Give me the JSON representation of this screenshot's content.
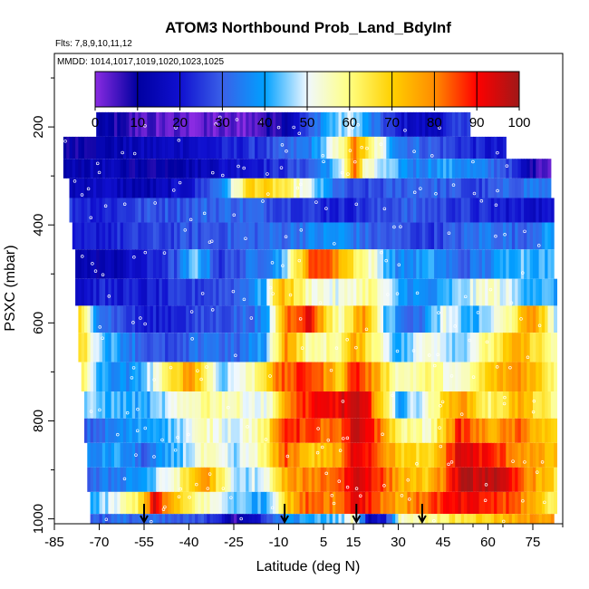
{
  "chart_data": {
    "type": "heatmap",
    "title": "ATOM3 Northbound Prob_Land_BdyInf",
    "subtitle": "Flts: 7,8,9,10,11,12",
    "annotation": "MMDD: 1014,1017,1019,1020,1023,1025",
    "xlabel": "Latitude (deg N)",
    "ylabel": "PSXC (mbar)",
    "xlim": [
      -85,
      85
    ],
    "ylim": [
      1010,
      50
    ],
    "x_ticks": [
      -85,
      -70,
      -55,
      -40,
      -25,
      -10,
      5,
      15,
      30,
      45,
      60,
      75
    ],
    "y_ticks": [
      200,
      400,
      600,
      800,
      1000
    ],
    "colorbar": {
      "range": [
        0,
        100
      ],
      "ticks": [
        0,
        10,
        20,
        30,
        40,
        50,
        60,
        70,
        80,
        90,
        100
      ],
      "colors": [
        "#8a2be2",
        "#0000a0",
        "#1010d0",
        "#3a60e8",
        "#00a0ff",
        "#f0f8ff",
        "#ffff80",
        "#ffd000",
        "#ff8c00",
        "#ff0000",
        "#a01818"
      ]
    },
    "bands": [
      {
        "p_top": 170,
        "p_bot": 220,
        "lat_min": -71,
        "lat_max": 54,
        "lats": [
          -71,
          -60,
          -40,
          -20,
          -10,
          0,
          5,
          10,
          15,
          20,
          30,
          40,
          50,
          54
        ],
        "vals": [
          12,
          5,
          2,
          3,
          10,
          28,
          40,
          45,
          48,
          35,
          20,
          15,
          25,
          30
        ]
      },
      {
        "p_top": 220,
        "p_bot": 265,
        "lat_min": -82,
        "lat_max": 66,
        "lats": [
          -82,
          -70,
          -55,
          -40,
          -25,
          -10,
          0,
          10,
          15,
          20,
          30,
          40,
          50,
          60,
          66
        ],
        "vals": [
          10,
          12,
          15,
          18,
          22,
          28,
          35,
          55,
          80,
          60,
          35,
          30,
          25,
          20,
          18
        ]
      },
      {
        "p_top": 265,
        "p_bot": 305,
        "lat_min": -82,
        "lat_max": 81,
        "lats": [
          -82,
          -70,
          -55,
          -40,
          -25,
          -10,
          0,
          10,
          15,
          18,
          25,
          35,
          45,
          55,
          65,
          75,
          81
        ],
        "vals": [
          12,
          15,
          10,
          14,
          20,
          24,
          30,
          45,
          85,
          55,
          45,
          35,
          40,
          35,
          30,
          8,
          5
        ]
      },
      {
        "p_top": 305,
        "p_bot": 345,
        "lat_min": -80,
        "lat_max": 81,
        "lats": [
          -80,
          -70,
          -55,
          -40,
          -30,
          -20,
          -10,
          0,
          10,
          15,
          25,
          35,
          45,
          55,
          65,
          75,
          81
        ],
        "vals": [
          15,
          18,
          12,
          20,
          35,
          70,
          65,
          48,
          30,
          25,
          28,
          32,
          30,
          25,
          30,
          35,
          30
        ]
      },
      {
        "p_top": 345,
        "p_bot": 395,
        "lat_min": -80,
        "lat_max": 82,
        "lats": [
          -80,
          -70,
          -55,
          -40,
          -25,
          -10,
          0,
          10,
          20,
          30,
          40,
          50,
          60,
          70,
          82
        ],
        "vals": [
          25,
          22,
          28,
          30,
          32,
          28,
          25,
          22,
          25,
          30,
          28,
          25,
          22,
          20,
          18
        ]
      },
      {
        "p_top": 395,
        "p_bot": 450,
        "lat_min": -79,
        "lat_max": 82,
        "lats": [
          -79,
          -70,
          -55,
          -40,
          -25,
          -10,
          0,
          10,
          20,
          30,
          40,
          50,
          60,
          70,
          82
        ],
        "vals": [
          18,
          22,
          25,
          28,
          30,
          32,
          35,
          38,
          30,
          28,
          25,
          30,
          35,
          30,
          40
        ]
      },
      {
        "p_top": 450,
        "p_bot": 510,
        "lat_min": -78,
        "lat_max": 82,
        "lats": [
          -78,
          -70,
          -55,
          -45,
          -38,
          -30,
          -20,
          -10,
          0,
          5,
          10,
          20,
          30,
          40,
          50,
          60,
          70,
          82
        ],
        "vals": [
          15,
          12,
          20,
          28,
          45,
          25,
          32,
          40,
          82,
          88,
          75,
          55,
          35,
          40,
          30,
          35,
          45,
          40
        ]
      },
      {
        "p_top": 510,
        "p_bot": 565,
        "lat_min": -78,
        "lat_max": 83,
        "lats": [
          -78,
          -70,
          -55,
          -40,
          -25,
          -15,
          -10,
          0,
          10,
          20,
          30,
          40,
          50,
          60,
          70,
          83
        ],
        "vals": [
          18,
          22,
          20,
          25,
          30,
          42,
          75,
          55,
          50,
          60,
          40,
          35,
          45,
          55,
          45,
          40
        ]
      },
      {
        "p_top": 565,
        "p_bot": 620,
        "lat_min": -77,
        "lat_max": 83,
        "lats": [
          -77,
          -70,
          -55,
          -40,
          -25,
          -15,
          -8,
          0,
          5,
          10,
          18,
          25,
          35,
          45,
          55,
          65,
          75,
          83
        ],
        "vals": [
          65,
          35,
          20,
          25,
          30,
          35,
          82,
          92,
          70,
          55,
          80,
          45,
          30,
          50,
          40,
          55,
          80,
          45
        ]
      },
      {
        "p_top": 620,
        "p_bot": 680,
        "lat_min": -77,
        "lat_max": 83,
        "lats": [
          -77,
          -70,
          -55,
          -45,
          -35,
          -25,
          -15,
          -8,
          0,
          10,
          15,
          20,
          30,
          40,
          50,
          60,
          70,
          83
        ],
        "vals": [
          70,
          45,
          30,
          25,
          35,
          30,
          40,
          80,
          55,
          60,
          75,
          65,
          40,
          55,
          45,
          60,
          75,
          55
        ]
      },
      {
        "p_top": 680,
        "p_bot": 740,
        "lat_min": -76,
        "lat_max": 83,
        "lats": [
          -76,
          -70,
          -60,
          -50,
          -40,
          -30,
          -20,
          -10,
          0,
          10,
          15,
          20,
          30,
          40,
          50,
          60,
          70,
          83
        ],
        "vals": [
          60,
          40,
          35,
          55,
          80,
          45,
          55,
          82,
          88,
          70,
          90,
          80,
          55,
          60,
          50,
          70,
          80,
          60
        ]
      },
      {
        "p_top": 740,
        "p_bot": 795,
        "lat_min": -75,
        "lat_max": 83,
        "lats": [
          -75,
          -65,
          -55,
          -45,
          -35,
          -25,
          -15,
          -5,
          5,
          10,
          15,
          20,
          30,
          40,
          50,
          60,
          70,
          83
        ],
        "vals": [
          45,
          42,
          40,
          50,
          60,
          55,
          50,
          85,
          90,
          92,
          95,
          88,
          40,
          55,
          80,
          60,
          75,
          55
        ]
      },
      {
        "p_top": 795,
        "p_bot": 845,
        "lat_min": -75,
        "lat_max": 83,
        "lats": [
          -75,
          -65,
          -55,
          -45,
          -35,
          -25,
          -15,
          -8,
          0,
          10,
          15,
          20,
          30,
          40,
          50,
          60,
          70,
          83
        ],
        "vals": [
          30,
          35,
          40,
          45,
          55,
          50,
          60,
          90,
          85,
          80,
          95,
          92,
          60,
          55,
          88,
          75,
          82,
          65
        ]
      },
      {
        "p_top": 845,
        "p_bot": 895,
        "lat_min": -74,
        "lat_max": 83,
        "lats": [
          -74,
          -65,
          -55,
          -45,
          -35,
          -25,
          -15,
          -8,
          0,
          10,
          15,
          20,
          30,
          40,
          50,
          60,
          70,
          83
        ],
        "vals": [
          35,
          40,
          30,
          42,
          55,
          45,
          60,
          85,
          70,
          75,
          95,
          90,
          70,
          65,
          95,
          88,
          80,
          70
        ]
      },
      {
        "p_top": 895,
        "p_bot": 945,
        "lat_min": -74,
        "lat_max": 83,
        "lats": [
          -74,
          -65,
          -55,
          -45,
          -35,
          -25,
          -15,
          -8,
          0,
          10,
          15,
          20,
          30,
          40,
          50,
          60,
          70,
          83
        ],
        "vals": [
          30,
          35,
          40,
          55,
          80,
          45,
          50,
          75,
          80,
          85,
          95,
          92,
          75,
          70,
          95,
          98,
          85,
          65
        ]
      },
      {
        "p_top": 945,
        "p_bot": 990,
        "lat_min": -73,
        "lat_max": 83,
        "lats": [
          -73,
          -65,
          -57,
          -52,
          -45,
          -35,
          -25,
          -15,
          -8,
          0,
          10,
          15,
          20,
          30,
          40,
          50,
          60,
          70,
          83
        ],
        "vals": [
          40,
          50,
          65,
          92,
          70,
          55,
          45,
          40,
          70,
          85,
          80,
          95,
          88,
          75,
          85,
          90,
          88,
          82,
          60
        ]
      },
      {
        "p_top": 990,
        "p_bot": 1035,
        "lat_min": -73,
        "lat_max": 82,
        "lats": [
          -73,
          -60,
          -50,
          -40,
          -30,
          -25,
          -18,
          -10,
          0,
          10,
          15,
          20,
          25,
          30,
          40,
          50,
          60,
          70,
          82
        ],
        "vals": [
          30,
          32,
          30,
          28,
          25,
          5,
          20,
          35,
          40,
          45,
          55,
          15,
          20,
          55,
          60,
          65,
          70,
          75,
          80
        ]
      }
    ],
    "markers_lat": [
      -55,
      -8,
      16,
      38
    ]
  }
}
